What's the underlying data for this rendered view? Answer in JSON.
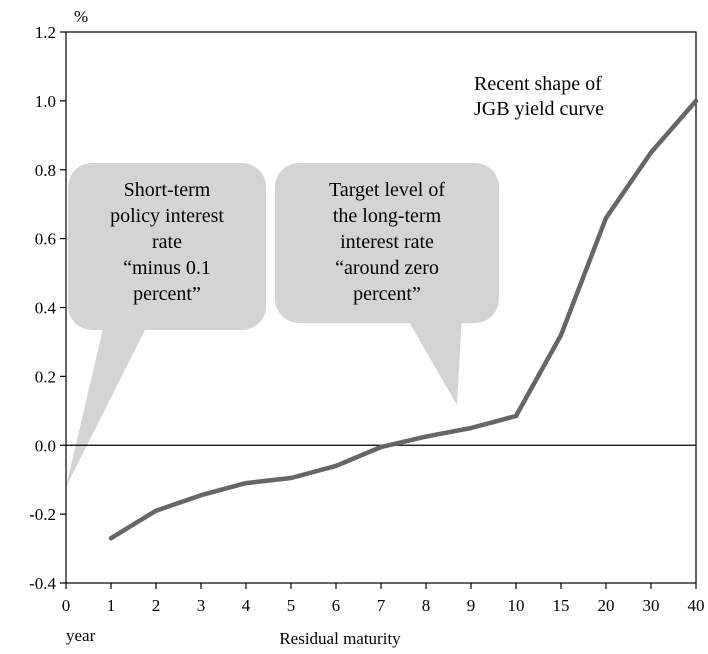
{
  "chart_data": {
    "type": "line",
    "y_unit": "%",
    "xlabel": "Residual maturity",
    "x_unit_label": "year",
    "ylim": [
      -0.4,
      1.2
    ],
    "y_ticks": [
      "1.2",
      "1.0",
      "0.8",
      "0.6",
      "0.4",
      "0.2",
      "0.0",
      "-0.2",
      "-0.4"
    ],
    "x_tick_labels": [
      "0",
      "1",
      "2",
      "3",
      "4",
      "5",
      "6",
      "7",
      "8",
      "9",
      "10",
      "15",
      "20",
      "30",
      "40"
    ],
    "grid": false,
    "series": [
      {
        "x": [
          "1",
          "2",
          "3",
          "4",
          "5",
          "6",
          "7",
          "8",
          "9",
          "10",
          "15",
          "20",
          "30",
          "40"
        ],
        "values": [
          -0.27,
          -0.19,
          -0.145,
          -0.11,
          -0.095,
          -0.06,
          -0.005,
          0.025,
          0.05,
          0.085,
          0.32,
          0.66,
          0.85,
          1.0
        ],
        "color": "#666666"
      }
    ],
    "annotations": {
      "series_label": [
        "Recent shape of",
        "JGB yield curve"
      ],
      "callout_left": [
        "Short-term",
        "policy interest",
        "rate",
        "“minus 0.1",
        "percent”"
      ],
      "callout_right": [
        "Target level of",
        "the long-term",
        "interest rate",
        "“around zero",
        "percent”"
      ]
    },
    "colors": {
      "line": "#666666",
      "callout_fill": "#d4d4d4"
    }
  }
}
